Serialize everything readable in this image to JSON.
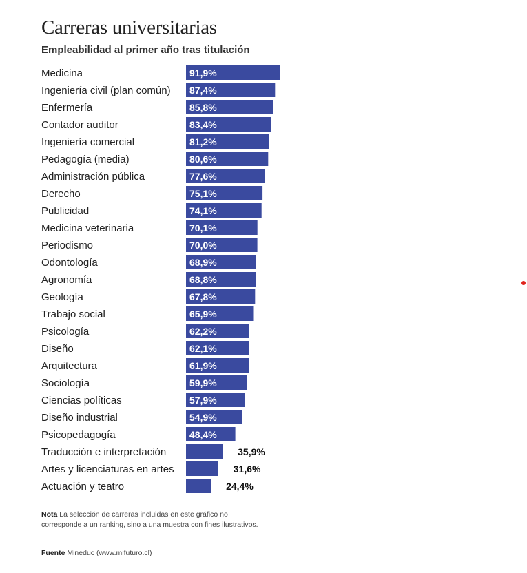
{
  "chart_data": {
    "type": "bar",
    "orientation": "horizontal",
    "title": "Carreras universitarias",
    "subtitle": "Empleabilidad al primer año tras titulación",
    "categories": [
      "Medicina",
      "Ingeniería civil (plan común)",
      "Enfermería",
      "Contador auditor",
      "Ingeniería comercial",
      "Pedagogía (media)",
      "Administración pública",
      "Derecho",
      "Publicidad",
      "Medicina veterinaria",
      "Periodismo",
      "Odontología",
      "Agronomía",
      "Geología",
      "Trabajo social",
      "Psicología",
      "Diseño",
      "Arquitectura",
      "Sociología",
      "Ciencias políticas",
      "Diseño industrial",
      "Psicopedagogía",
      "Traducción e interpretación",
      "Artes y licenciaturas en artes",
      "Actuación y teatro"
    ],
    "values": [
      91.9,
      87.4,
      85.8,
      83.4,
      81.2,
      80.6,
      77.6,
      75.1,
      74.1,
      70.1,
      70.0,
      68.9,
      68.8,
      67.8,
      65.9,
      62.2,
      62.1,
      61.9,
      59.9,
      57.9,
      54.9,
      48.4,
      35.9,
      31.6,
      24.4
    ],
    "value_labels": [
      "91,9%",
      "87,4%",
      "85,8%",
      "83,4%",
      "81,2%",
      "80,6%",
      "77,6%",
      "75,1%",
      "74,1%",
      "70,1%",
      "70,0%",
      "68,9%",
      "68,8%",
      "67,8%",
      "65,9%",
      "62,2%",
      "62,1%",
      "61,9%",
      "59,9%",
      "57,9%",
      "54,9%",
      "48,4%",
      "35,9%",
      "31,6%",
      "24,4%"
    ],
    "xlim": [
      0,
      100
    ],
    "grid": false,
    "legend": "none",
    "bar_color": "#3a4a9f"
  },
  "footer": {
    "note_label": "Nota",
    "note_text": "La selección de carreras incluidas en este gráfico no corresponde a un ranking, sino a una muestra con fines ilustrativos.",
    "source_label": "Fuente",
    "source_text": "Mineduc (www.mifuturo.cl)"
  },
  "colors": {
    "accent_dot": "#e0231c"
  }
}
